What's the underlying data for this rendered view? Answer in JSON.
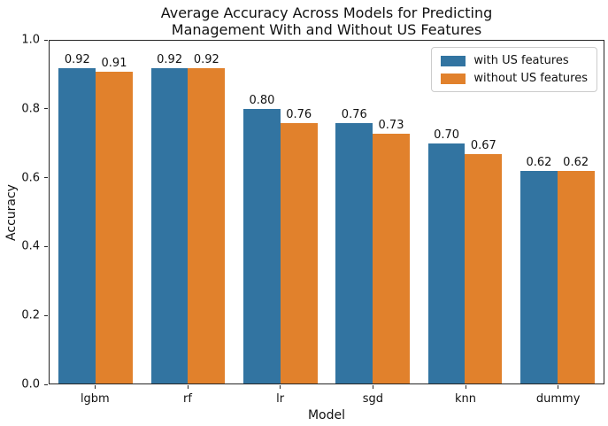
{
  "figure": {
    "background": "#ffffff",
    "spine_color": "#262626"
  },
  "chart_data": {
    "type": "bar",
    "title": "Average Accuracy Across Models for Predicting\nManagement With and Without US Features",
    "xlabel": "Model",
    "ylabel": "Accuracy",
    "categories": [
      "lgbm",
      "rf",
      "lr",
      "sgd",
      "knn",
      "dummy"
    ],
    "series": [
      {
        "name": "with US features",
        "color": "#3274a1",
        "values": [
          0.92,
          0.92,
          0.8,
          0.76,
          0.7,
          0.62
        ]
      },
      {
        "name": "without US features",
        "color": "#e1812c",
        "values": [
          0.91,
          0.92,
          0.76,
          0.73,
          0.67,
          0.62
        ]
      }
    ],
    "bar_value_labels": [
      [
        "0.92",
        "0.92",
        "0.80",
        "0.76",
        "0.70",
        "0.62"
      ],
      [
        "0.91",
        "0.92",
        "0.76",
        "0.73",
        "0.67",
        "0.62"
      ]
    ],
    "ylim": [
      0.0,
      1.0
    ],
    "yticks": [
      "0.0",
      "0.2",
      "0.4",
      "0.6",
      "0.8",
      "1.0"
    ],
    "grid": false,
    "legend_position": "upper right"
  }
}
